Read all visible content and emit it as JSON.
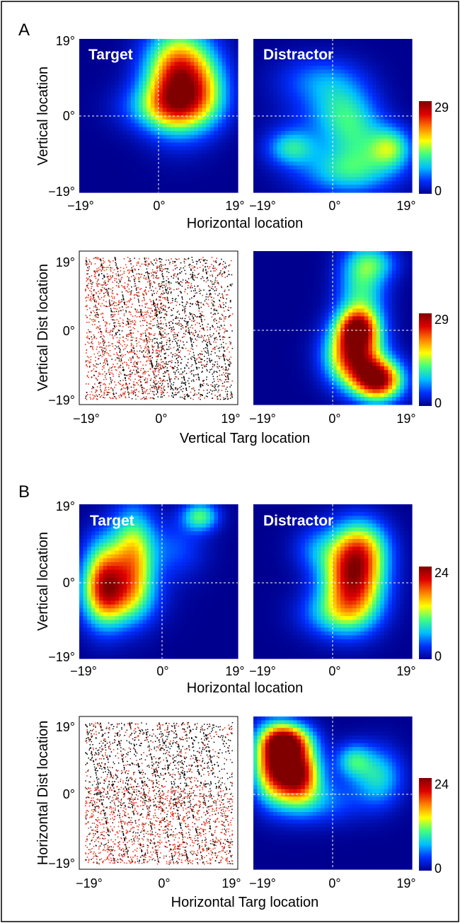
{
  "figure": {
    "panels": [
      {
        "letter": "A",
        "row1": {
          "ylabel": "Vertical location",
          "xlabel": "Horizontal location",
          "left_title": "Target",
          "right_title": "Distractor",
          "colorbar": {
            "min": "0",
            "max": "29"
          }
        },
        "row2": {
          "ylabel": "Vertical Dist location",
          "xlabel": "Vertical Targ location",
          "colorbar": {
            "min": "0",
            "max": "29"
          }
        }
      },
      {
        "letter": "B",
        "row1": {
          "ylabel": "Vertical location",
          "xlabel": "Horizontal location",
          "left_title": "Target",
          "right_title": "Distractor",
          "colorbar": {
            "min": "0",
            "max": "24"
          }
        },
        "row2": {
          "ylabel": "Horizontal Dist location",
          "xlabel": "Horizontal Targ location",
          "colorbar": {
            "min": "0",
            "max": "24"
          }
        }
      }
    ],
    "tick_labels": {
      "neg": "−19°",
      "zero": "0°",
      "pos": "19°"
    },
    "colormap": [
      "#00008f",
      "#0030ff",
      "#00c0ff",
      "#40ff80",
      "#ffff00",
      "#ff8000",
      "#e00000",
      "#800000"
    ],
    "scatter_colors": {
      "target_first": "#e8381f",
      "distractor_first": "#000000"
    }
  },
  "chart_data": [
    {
      "type": "heatmap",
      "panel": "A",
      "title": "Target",
      "xlabel": "Horizontal location",
      "ylabel": "Vertical location",
      "xlim": [
        -19,
        19
      ],
      "ylim": [
        -19,
        19
      ],
      "clim": [
        0,
        29
      ],
      "blobs": [
        {
          "x": 5,
          "y": 9,
          "sx": 5.5,
          "sy": 8,
          "amp": 27
        },
        {
          "x": 2,
          "y": 2,
          "sx": 7,
          "sy": 4,
          "amp": 10
        },
        {
          "x": 12,
          "y": 6,
          "sx": 4,
          "sy": 6,
          "amp": 6
        }
      ]
    },
    {
      "type": "heatmap",
      "panel": "A",
      "title": "Distractor",
      "xlabel": "Horizontal location",
      "ylabel": "Vertical location",
      "xlim": [
        -19,
        19
      ],
      "ylim": [
        -19,
        19
      ],
      "clim": [
        0,
        29
      ],
      "blobs": [
        {
          "x": 14,
          "y": -8,
          "sx": 3.5,
          "sy": 3.5,
          "amp": 12
        },
        {
          "x": 6,
          "y": -5,
          "sx": 5,
          "sy": 6,
          "amp": 8
        },
        {
          "x": -10,
          "y": -8,
          "sx": 4,
          "sy": 3,
          "amp": 9
        },
        {
          "x": 4,
          "y": -14,
          "sx": 8,
          "sy": 4,
          "amp": 9
        },
        {
          "x": 2,
          "y": 2,
          "sx": 5,
          "sy": 5,
          "amp": 6
        },
        {
          "x": -3,
          "y": 9,
          "sx": 7,
          "sy": 4,
          "amp": 5
        },
        {
          "x": -4,
          "y": -2,
          "sx": 7,
          "sy": 8,
          "amp": 3
        }
      ]
    },
    {
      "type": "scatter",
      "panel": "A",
      "xlabel": "Vertical Targ location",
      "ylabel": "Vertical Dist location",
      "xlim": [
        -19,
        19
      ],
      "ylim": [
        -19,
        19
      ]
    },
    {
      "type": "heatmap",
      "panel": "A",
      "xlabel": "Vertical Targ location",
      "ylabel": "Vertical Dist location",
      "xlim": [
        -19,
        19
      ],
      "ylim": [
        -19,
        19
      ],
      "clim": [
        0,
        29
      ],
      "blobs": [
        {
          "x": 11,
          "y": -13,
          "sx": 4,
          "sy": 3.5,
          "amp": 27
        },
        {
          "x": 5,
          "y": -7,
          "sx": 4.5,
          "sy": 5,
          "amp": 25
        },
        {
          "x": 6,
          "y": 0,
          "sx": 3.5,
          "sy": 3.5,
          "amp": 20
        },
        {
          "x": 7,
          "y": 10,
          "sx": 4,
          "sy": 7,
          "amp": 11
        },
        {
          "x": 10,
          "y": 16,
          "sx": 4,
          "sy": 3,
          "amp": 7
        }
      ]
    },
    {
      "type": "heatmap",
      "panel": "B",
      "title": "Target",
      "xlabel": "Horizontal location",
      "ylabel": "Vertical location",
      "xlim": [
        -19,
        19
      ],
      "ylim": [
        -19,
        19
      ],
      "clim": [
        0,
        24
      ],
      "blobs": [
        {
          "x": -13,
          "y": 0,
          "sx": 3.5,
          "sy": 7,
          "amp": 17
        },
        {
          "x": -6,
          "y": 6,
          "sx": 3.5,
          "sy": 8,
          "amp": 14
        },
        {
          "x": -9,
          "y": -4,
          "sx": 6,
          "sy": 5,
          "amp": 8
        },
        {
          "x": 10,
          "y": 16,
          "sx": 3,
          "sy": 2.5,
          "amp": 10
        },
        {
          "x": 4,
          "y": 8,
          "sx": 5,
          "sy": 5,
          "amp": 4
        }
      ]
    },
    {
      "type": "heatmap",
      "panel": "B",
      "title": "Distractor",
      "xlabel": "Horizontal location",
      "ylabel": "Vertical location",
      "xlim": [
        -19,
        19
      ],
      "ylim": [
        -19,
        19
      ],
      "clim": [
        0,
        24
      ],
      "blobs": [
        {
          "x": 5,
          "y": 1,
          "sx": 5,
          "sy": 7,
          "amp": 22
        },
        {
          "x": 7,
          "y": 9,
          "sx": 4.5,
          "sy": 4.5,
          "amp": 8
        },
        {
          "x": 1,
          "y": -8,
          "sx": 6,
          "sy": 4,
          "amp": 7
        },
        {
          "x": -4,
          "y": 8,
          "sx": 4,
          "sy": 4,
          "amp": 4
        }
      ]
    },
    {
      "type": "scatter",
      "panel": "B",
      "xlabel": "Horizontal Targ location",
      "ylabel": "Horizontal Dist location",
      "xlim": [
        -19,
        19
      ],
      "ylim": [
        -19,
        19
      ]
    },
    {
      "type": "heatmap",
      "panel": "B",
      "xlabel": "Horizontal Targ location",
      "ylabel": "Horizontal Dist location",
      "xlim": [
        -19,
        19
      ],
      "ylim": [
        -19,
        19
      ],
      "clim": [
        0,
        24
      ],
      "blobs": [
        {
          "x": -14,
          "y": 7,
          "sx": 3.5,
          "sy": 6,
          "amp": 20
        },
        {
          "x": -8,
          "y": 5,
          "sx": 3.5,
          "sy": 5,
          "amp": 21
        },
        {
          "x": -11,
          "y": 13,
          "sx": 4,
          "sy": 3,
          "amp": 16
        },
        {
          "x": 5,
          "y": 8,
          "sx": 3,
          "sy": 3,
          "amp": 8
        },
        {
          "x": 11,
          "y": 4,
          "sx": 4,
          "sy": 5,
          "amp": 8
        },
        {
          "x": -3,
          "y": -2,
          "sx": 7,
          "sy": 4,
          "amp": 5
        }
      ]
    }
  ]
}
